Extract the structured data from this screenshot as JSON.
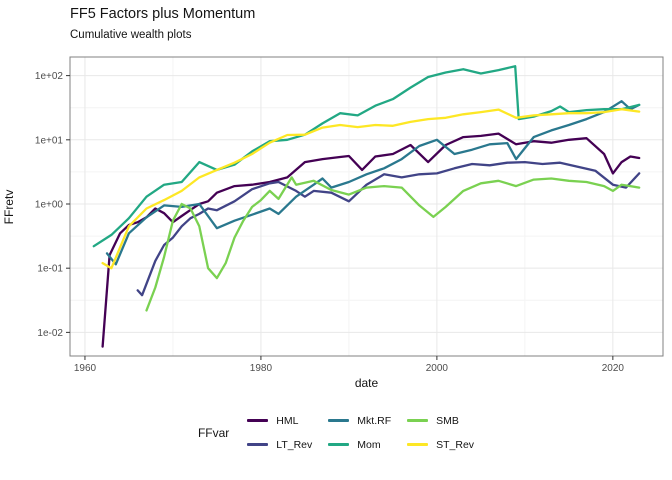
{
  "header": {
    "title": "FF5 Factors plus Momentum",
    "subtitle": "Cumulative wealth plots"
  },
  "chart_data": {
    "type": "line",
    "title": "FF5 Factors plus Momentum",
    "subtitle": "Cumulative wealth plots",
    "xlabel": "date",
    "ylabel": "FFretv",
    "legend_title": "FFvar",
    "legend_position": "bottom",
    "grid": "on",
    "y_scale": "log10",
    "xlim": [
      1958.3,
      2025.7
    ],
    "ylim_log": [
      -2.368,
      2.29
    ],
    "x_ticks": [
      1960,
      1980,
      2000,
      2020
    ],
    "x_minor_ticks": [
      1970,
      1990,
      2010
    ],
    "y_ticks_log": [
      -2,
      -1,
      0,
      1,
      2
    ],
    "y_minor_ticks_log": [
      -1.5,
      -0.5,
      0.5,
      1.5
    ],
    "y_tick_labels": [
      "1e-02",
      "1e-01",
      "1e+00",
      "1e+01",
      "1e+02"
    ],
    "panel_border_color": "#808080",
    "grid_major_color": "#e8e8e8",
    "grid_minor_color": "#f4f4f4",
    "tick_color": "#333333",
    "tick_label_color": "#4d4d4d",
    "series": [
      {
        "name": "HML",
        "color": "#440154",
        "points": [
          [
            1962,
            0.006
          ],
          [
            1962.8,
            0.16
          ],
          [
            1964,
            0.35
          ],
          [
            1965,
            0.47
          ],
          [
            1966,
            0.52
          ],
          [
            1967,
            0.62
          ],
          [
            1968,
            0.85
          ],
          [
            1969,
            0.72
          ],
          [
            1970,
            0.52
          ],
          [
            1971,
            0.65
          ],
          [
            1972,
            0.81
          ],
          [
            1973,
            1.0
          ],
          [
            1974,
            1.1
          ],
          [
            1975,
            1.5
          ],
          [
            1977,
            1.9
          ],
          [
            1979,
            2.0
          ],
          [
            1981,
            2.2
          ],
          [
            1983,
            2.6
          ],
          [
            1985,
            4.5
          ],
          [
            1987,
            5.0
          ],
          [
            1989,
            5.4
          ],
          [
            1990,
            5.6
          ],
          [
            1991.5,
            3.4
          ],
          [
            1993,
            5.5
          ],
          [
            1995,
            6.0
          ],
          [
            1997,
            8.3
          ],
          [
            1999,
            4.5
          ],
          [
            2001,
            8.3
          ],
          [
            2003,
            11
          ],
          [
            2005,
            11.5
          ],
          [
            2007,
            12.5
          ],
          [
            2009,
            8.5
          ],
          [
            2011,
            9.5
          ],
          [
            2013,
            9.0
          ],
          [
            2015,
            10
          ],
          [
            2017,
            10.6
          ],
          [
            2019,
            6.0
          ],
          [
            2020,
            3.0
          ],
          [
            2021,
            4.5
          ],
          [
            2022,
            5.5
          ],
          [
            2023,
            5.2
          ]
        ]
      },
      {
        "name": "LT_Rev",
        "color": "#414487",
        "points": [
          [
            1966,
            0.045
          ],
          [
            1966.5,
            0.038
          ],
          [
            1968,
            0.13
          ],
          [
            1969,
            0.23
          ],
          [
            1970,
            0.3
          ],
          [
            1971,
            0.45
          ],
          [
            1972,
            0.6
          ],
          [
            1973,
            0.7
          ],
          [
            1974,
            0.85
          ],
          [
            1975,
            0.8
          ],
          [
            1977,
            1.1
          ],
          [
            1979,
            1.7
          ],
          [
            1981,
            2.1
          ],
          [
            1982,
            2.2
          ],
          [
            1984,
            1.6
          ],
          [
            1985,
            1.3
          ],
          [
            1986,
            1.6
          ],
          [
            1988,
            1.5
          ],
          [
            1990,
            1.1
          ],
          [
            1992,
            2.0
          ],
          [
            1994,
            2.9
          ],
          [
            1996,
            2.6
          ],
          [
            1998,
            2.9
          ],
          [
            2000,
            3.0
          ],
          [
            2002,
            3.6
          ],
          [
            2004,
            4.2
          ],
          [
            2006,
            4.0
          ],
          [
            2008,
            4.4
          ],
          [
            2010,
            4.5
          ],
          [
            2012,
            4.2
          ],
          [
            2014,
            4.4
          ],
          [
            2016,
            3.8
          ],
          [
            2018,
            3.3
          ],
          [
            2020,
            2.0
          ],
          [
            2021.5,
            1.8
          ],
          [
            2023,
            3.0
          ]
        ]
      },
      {
        "name": "Mkt.RF",
        "color": "#2a788e",
        "points": [
          [
            1962.5,
            0.17
          ],
          [
            1963.5,
            0.115
          ],
          [
            1965,
            0.35
          ],
          [
            1967,
            0.62
          ],
          [
            1969,
            0.95
          ],
          [
            1971,
            0.9
          ],
          [
            1973,
            1.0
          ],
          [
            1975,
            0.42
          ],
          [
            1977,
            0.55
          ],
          [
            1979,
            0.68
          ],
          [
            1981,
            0.85
          ],
          [
            1982,
            0.7
          ],
          [
            1984,
            1.3
          ],
          [
            1986,
            2.0
          ],
          [
            1987,
            2.5
          ],
          [
            1988,
            1.8
          ],
          [
            1990,
            2.2
          ],
          [
            1992,
            2.9
          ],
          [
            1994,
            3.6
          ],
          [
            1996,
            5.0
          ],
          [
            1998,
            8.0
          ],
          [
            2000,
            10.0
          ],
          [
            2002,
            6.0
          ],
          [
            2004,
            7.0
          ],
          [
            2006,
            8.5
          ],
          [
            2008,
            8.9
          ],
          [
            2009,
            5.0
          ],
          [
            2011,
            11
          ],
          [
            2013,
            14
          ],
          [
            2015,
            17
          ],
          [
            2017,
            21
          ],
          [
            2019,
            27
          ],
          [
            2021,
            40
          ],
          [
            2022,
            30
          ],
          [
            2023,
            35
          ]
        ]
      },
      {
        "name": "Mom",
        "color": "#22a884",
        "points": [
          [
            1961,
            0.22
          ],
          [
            1963,
            0.33
          ],
          [
            1965,
            0.6
          ],
          [
            1967,
            1.3
          ],
          [
            1969,
            2.0
          ],
          [
            1971,
            2.2
          ],
          [
            1973,
            4.5
          ],
          [
            1975,
            3.4
          ],
          [
            1977,
            4.1
          ],
          [
            1979,
            6.6
          ],
          [
            1981,
            9.5
          ],
          [
            1983,
            10
          ],
          [
            1985,
            12
          ],
          [
            1987,
            18
          ],
          [
            1989,
            26
          ],
          [
            1991,
            24
          ],
          [
            1993,
            34
          ],
          [
            1995,
            43
          ],
          [
            1997,
            65
          ],
          [
            1999,
            95
          ],
          [
            2001,
            112
          ],
          [
            2003,
            126
          ],
          [
            2005,
            108
          ],
          [
            2007,
            122
          ],
          [
            2008.9,
            140
          ],
          [
            2009.3,
            21
          ],
          [
            2011,
            23
          ],
          [
            2013,
            28
          ],
          [
            2014,
            33
          ],
          [
            2015,
            27
          ],
          [
            2017,
            29
          ],
          [
            2019,
            30
          ],
          [
            2021,
            30
          ],
          [
            2023,
            35
          ]
        ]
      },
      {
        "name": "SMB",
        "color": "#7ad151",
        "points": [
          [
            1967,
            0.022
          ],
          [
            1968,
            0.05
          ],
          [
            1969,
            0.15
          ],
          [
            1970,
            0.55
          ],
          [
            1971,
            1.0
          ],
          [
            1972,
            0.85
          ],
          [
            1973,
            0.45
          ],
          [
            1974,
            0.1
          ],
          [
            1975,
            0.07
          ],
          [
            1976,
            0.12
          ],
          [
            1977,
            0.3
          ],
          [
            1978,
            0.55
          ],
          [
            1979,
            0.9
          ],
          [
            1980,
            1.15
          ],
          [
            1981,
            1.6
          ],
          [
            1982,
            1.2
          ],
          [
            1983.5,
            2.6
          ],
          [
            1984,
            2.0
          ],
          [
            1986,
            2.3
          ],
          [
            1988,
            1.65
          ],
          [
            1990,
            1.4
          ],
          [
            1992,
            1.8
          ],
          [
            1994,
            1.9
          ],
          [
            1996,
            1.8
          ],
          [
            1998,
            0.95
          ],
          [
            1999.6,
            0.63
          ],
          [
            2001,
            0.9
          ],
          [
            2003,
            1.6
          ],
          [
            2005,
            2.1
          ],
          [
            2007,
            2.3
          ],
          [
            2009,
            1.9
          ],
          [
            2011,
            2.4
          ],
          [
            2013,
            2.5
          ],
          [
            2015,
            2.3
          ],
          [
            2017,
            2.2
          ],
          [
            2019,
            1.9
          ],
          [
            2020,
            1.6
          ],
          [
            2021,
            2.0
          ],
          [
            2023,
            1.8
          ]
        ]
      },
      {
        "name": "ST_Rev",
        "color": "#fde725",
        "points": [
          [
            1962,
            0.12
          ],
          [
            1963,
            0.1
          ],
          [
            1965,
            0.45
          ],
          [
            1967,
            0.85
          ],
          [
            1969,
            1.15
          ],
          [
            1971,
            1.6
          ],
          [
            1973,
            2.6
          ],
          [
            1975,
            3.4
          ],
          [
            1977,
            4.4
          ],
          [
            1979,
            6.0
          ],
          [
            1981,
            9.0
          ],
          [
            1983,
            11.9
          ],
          [
            1985,
            12
          ],
          [
            1987,
            15.5
          ],
          [
            1989,
            17
          ],
          [
            1991,
            15.8
          ],
          [
            1993,
            17
          ],
          [
            1995,
            16.5
          ],
          [
            1997,
            19
          ],
          [
            1999,
            21
          ],
          [
            2001,
            22
          ],
          [
            2003,
            25
          ],
          [
            2005,
            27
          ],
          [
            2007,
            29.5
          ],
          [
            2009,
            22
          ],
          [
            2011,
            24
          ],
          [
            2013,
            25
          ],
          [
            2015,
            26
          ],
          [
            2017,
            26
          ],
          [
            2019,
            27
          ],
          [
            2021,
            30
          ],
          [
            2023,
            27.5
          ]
        ]
      }
    ],
    "legend_columns": [
      [
        "HML",
        "LT_Rev"
      ],
      [
        "Mkt.RF",
        "Mom"
      ],
      [
        "SMB",
        "ST_Rev"
      ]
    ]
  }
}
